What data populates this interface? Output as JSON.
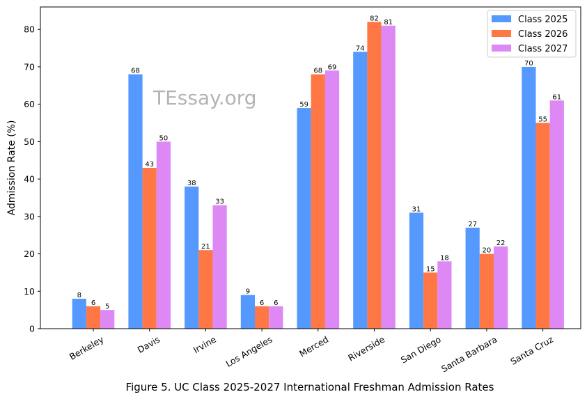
{
  "watermark": "TEssay.org",
  "caption": "Figure 5. UC Class 2025-2027 International Freshman Admission Rates",
  "chart_data": {
    "type": "bar",
    "title": "",
    "xlabel": "",
    "ylabel": "Admission Rate (%)",
    "ylim": [
      0,
      86
    ],
    "yticks": [
      0,
      10,
      20,
      30,
      40,
      50,
      60,
      70,
      80
    ],
    "grid": false,
    "legend_position": "top-right",
    "categories": [
      "Berkeley",
      "Davis",
      "Irvine",
      "Los Angeles",
      "Merced",
      "Riverside",
      "San Diego",
      "Santa Barbara",
      "Santa Cruz"
    ],
    "series": [
      {
        "name": "Class 2025",
        "color": "#5599ff",
        "values": [
          8,
          68,
          38,
          9,
          59,
          74,
          31,
          27,
          70
        ]
      },
      {
        "name": "Class 2026",
        "color": "#ff7744",
        "values": [
          6,
          43,
          21,
          6,
          68,
          82,
          15,
          20,
          55
        ]
      },
      {
        "name": "Class 2027",
        "color": "#dd88f5",
        "values": [
          5,
          50,
          33,
          6,
          69,
          81,
          18,
          22,
          61
        ]
      }
    ]
  }
}
